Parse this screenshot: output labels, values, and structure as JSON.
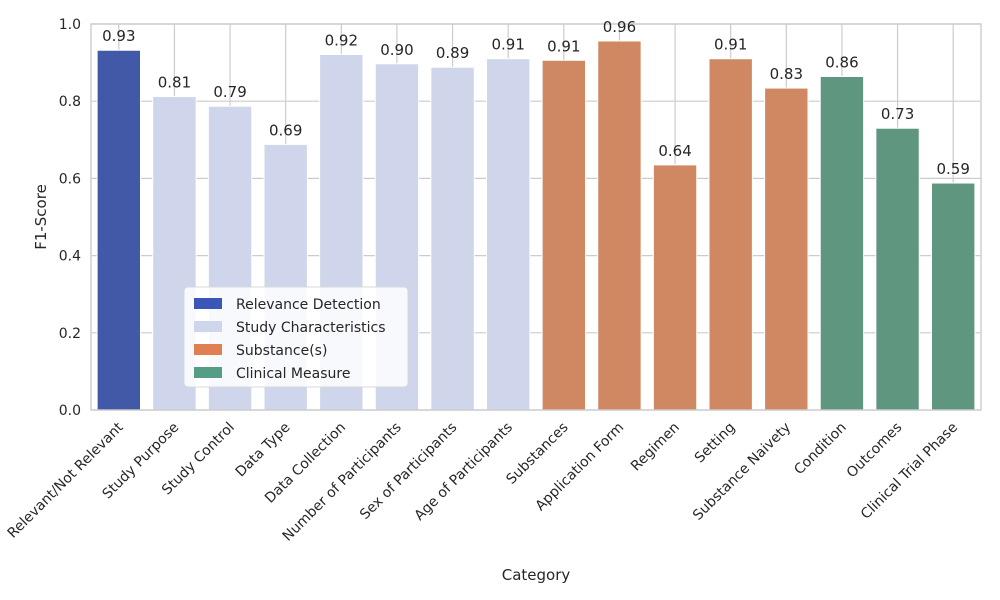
{
  "chart_data": {
    "type": "bar",
    "xlabel": "Category",
    "ylabel": "F1-Score",
    "ylim": [
      0,
      1.0
    ],
    "yticks": [
      "0.0",
      "0.2",
      "0.4",
      "0.6",
      "0.8",
      "1.0"
    ],
    "grid": true,
    "legend_position": "lower-left",
    "categories": [
      "Relevant/Not Relevant",
      "Study Purpose",
      "Study Control",
      "Data Type",
      "Data Collection",
      "Number of Participants",
      "Sex of Participants",
      "Age of Participants",
      "Substances",
      "Application Form",
      "Regimen",
      "Setting",
      "Substance Naivety",
      "Condition",
      "Outcomes",
      "Clinical Trial Phase"
    ],
    "values": [
      0.932,
      0.812,
      0.787,
      0.688,
      0.921,
      0.897,
      0.888,
      0.91,
      0.906,
      0.956,
      0.635,
      0.91,
      0.834,
      0.864,
      0.73,
      0.588
    ],
    "data_labels": [
      "0.93",
      "0.81",
      "0.79",
      "0.69",
      "0.92",
      "0.90",
      "0.89",
      "0.91",
      "0.91",
      "0.96",
      "0.64",
      "0.91",
      "0.83",
      "0.86",
      "0.73",
      "0.59"
    ],
    "groups": [
      {
        "name": "Relevance Detection",
        "color": "#4259a8",
        "legend_color": "#3a56b8",
        "indices": [
          0
        ]
      },
      {
        "name": "Study Characteristics",
        "color": "#cfd5ea",
        "legend_color": "#cfd5ea",
        "indices": [
          1,
          2,
          3,
          4,
          5,
          6,
          7
        ]
      },
      {
        "name": "Substance(s)",
        "color": "#d08863",
        "legend_color": "#e07f52",
        "indices": [
          8,
          9,
          10,
          11,
          12
        ]
      },
      {
        "name": "Clinical Measure",
        "color": "#5f9680",
        "legend_color": "#559d84",
        "indices": [
          13,
          14,
          15
        ]
      }
    ]
  }
}
